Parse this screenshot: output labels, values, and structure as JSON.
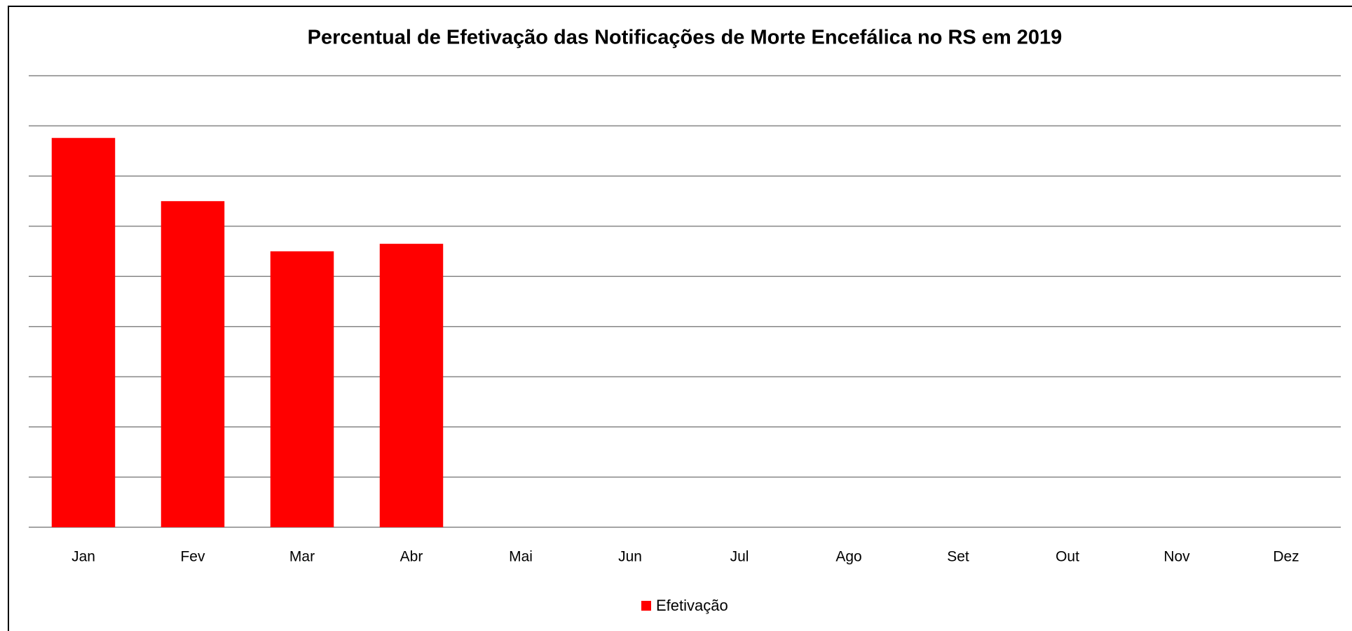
{
  "chart_data": {
    "type": "bar",
    "title": "Percentual de Efetivação das Notificações de Morte Encefálica no RS em 2019",
    "categories": [
      "Jan",
      "Fev",
      "Mar",
      "Abr",
      "Mai",
      "Jun",
      "Jul",
      "Ago",
      "Set",
      "Out",
      "Nov",
      "Dez"
    ],
    "series": [
      {
        "name": "Efetivação",
        "color": "#ff0000",
        "values": [
          77.6,
          65,
          55,
          56.5,
          null,
          null,
          null,
          null,
          null,
          null,
          null,
          null
        ]
      }
    ],
    "ylim": [
      0,
      90
    ],
    "yticks": [
      0,
      10,
      20,
      30,
      40,
      50,
      60,
      70,
      80,
      90
    ],
    "grid": true,
    "legend": "bottom"
  }
}
